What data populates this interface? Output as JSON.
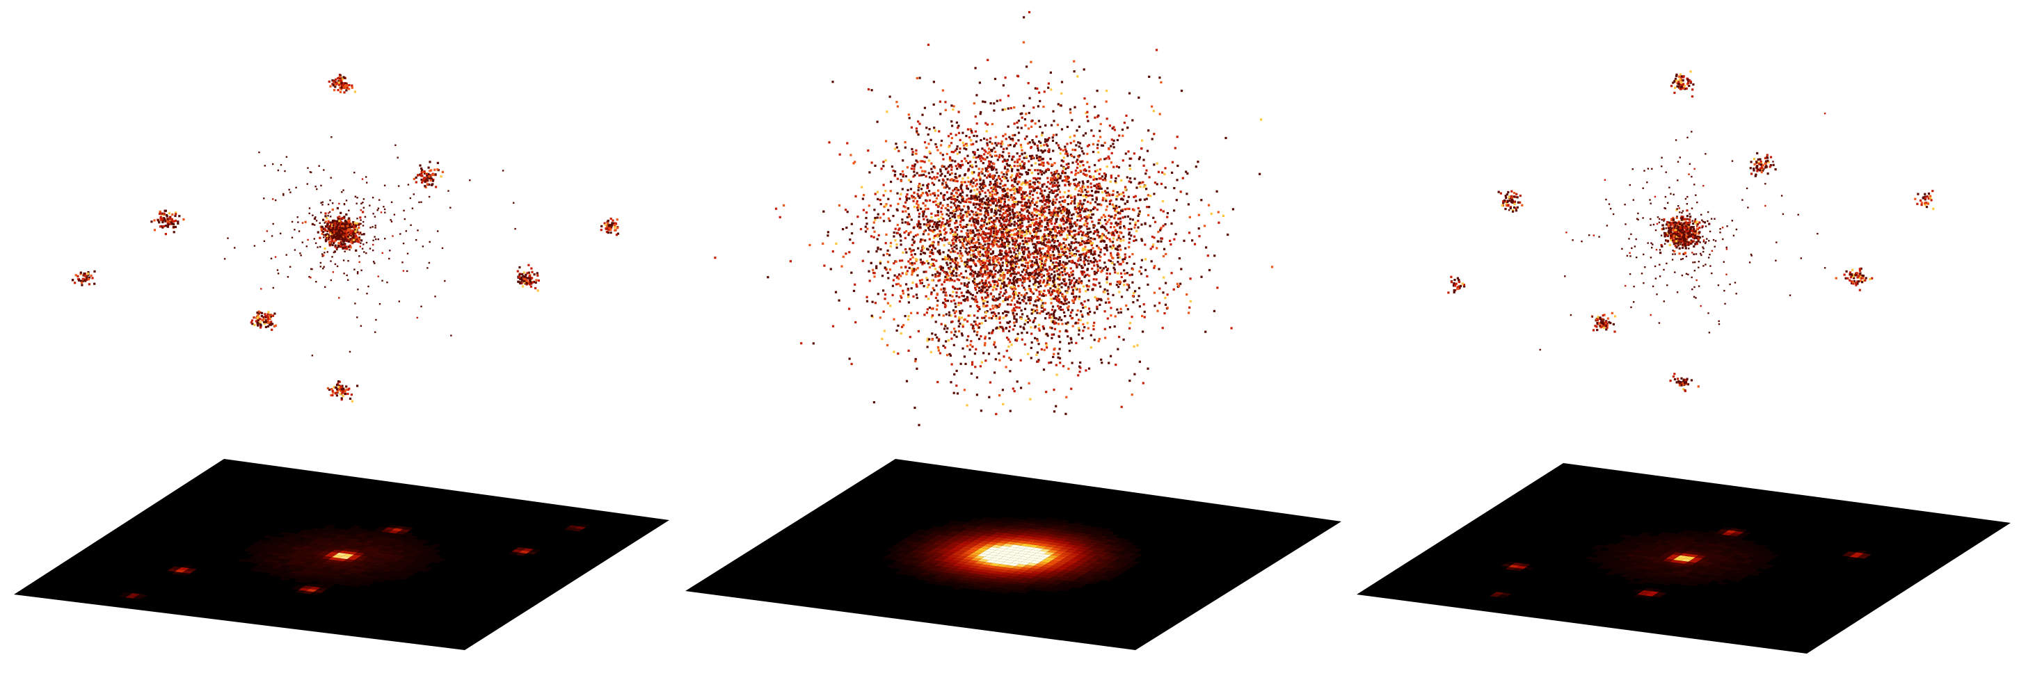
{
  "chart_data": [
    {
      "type": "scatter",
      "panel": "left",
      "description_of_content": "",
      "clusters": [
        {
          "x": 0,
          "y": 0,
          "n": 500,
          "spread": 0.05
        },
        {
          "x": 0,
          "y": 1,
          "n": 80,
          "spread": 0.03
        },
        {
          "x": 0.48,
          "y": 0.38,
          "n": 80,
          "spread": 0.03
        },
        {
          "x": -0.98,
          "y": 0.08,
          "n": 80,
          "spread": 0.03
        },
        {
          "x": 1.52,
          "y": 0.04,
          "n": 50,
          "spread": 0.025
        },
        {
          "x": -1.45,
          "y": -0.3,
          "n": 40,
          "spread": 0.025
        },
        {
          "x": -0.42,
          "y": -0.58,
          "n": 80,
          "spread": 0.03
        },
        {
          "x": 1.05,
          "y": -0.3,
          "n": 80,
          "spread": 0.03
        },
        {
          "x": 0,
          "y": -1.05,
          "n": 60,
          "spread": 0.03
        }
      ],
      "halo": {
        "n": 320,
        "spread": 0.34
      },
      "heatmap_peaks": [
        {
          "x": 0,
          "y": 0,
          "amp": 1.0,
          "sigma": 0.05
        },
        {
          "x": -1.0,
          "y": 0.08,
          "amp": 0.55,
          "sigma": 0.035
        },
        {
          "x": 0.48,
          "y": 0.38,
          "amp": 0.45,
          "sigma": 0.035
        },
        {
          "x": -0.42,
          "y": -0.58,
          "amp": 0.55,
          "sigma": 0.035
        },
        {
          "x": 1.05,
          "y": -0.3,
          "amp": 0.5,
          "sigma": 0.035
        },
        {
          "x": 1.52,
          "y": 0.04,
          "amp": 0.3,
          "sigma": 0.03
        },
        {
          "x": -1.45,
          "y": -0.3,
          "amp": 0.3,
          "sigma": 0.03
        },
        {
          "x": 0,
          "y": 0,
          "amp": 0.12,
          "sigma": 0.35
        }
      ]
    },
    {
      "type": "scatter",
      "panel": "middle",
      "clusters": [
        {
          "x": 0,
          "y": 0,
          "n": 5200,
          "spread": 0.38
        }
      ],
      "halo": {
        "n": 0,
        "spread": 0
      },
      "heatmap_peaks": [
        {
          "x": 0,
          "y": 0,
          "amp": 1.0,
          "sigma": 0.14
        },
        {
          "x": 0,
          "y": 0,
          "amp": 0.75,
          "sigma": 0.3
        }
      ]
    },
    {
      "type": "scatter",
      "panel": "right",
      "clusters": [
        {
          "x": 0,
          "y": 0,
          "n": 450,
          "spread": 0.05
        },
        {
          "x": 0,
          "y": 1,
          "n": 60,
          "spread": 0.03
        },
        {
          "x": 0.45,
          "y": 0.45,
          "n": 60,
          "spread": 0.03
        },
        {
          "x": -0.98,
          "y": 0.22,
          "n": 60,
          "spread": 0.03
        },
        {
          "x": 1.4,
          "y": 0.22,
          "n": 30,
          "spread": 0.025
        },
        {
          "x": -1.3,
          "y": -0.35,
          "n": 30,
          "spread": 0.025
        },
        {
          "x": -0.45,
          "y": -0.6,
          "n": 60,
          "spread": 0.03
        },
        {
          "x": 1.0,
          "y": -0.3,
          "n": 60,
          "spread": 0.03
        },
        {
          "x": 0,
          "y": -1.0,
          "n": 40,
          "spread": 0.025
        }
      ],
      "halo": {
        "n": 300,
        "spread": 0.36
      },
      "heatmap_peaks": [
        {
          "x": 0,
          "y": 0,
          "amp": 1.0,
          "sigma": 0.05
        },
        {
          "x": -1.0,
          "y": 0.2,
          "amp": 0.5,
          "sigma": 0.035
        },
        {
          "x": 0.45,
          "y": 0.4,
          "amp": 0.45,
          "sigma": 0.035
        },
        {
          "x": -0.45,
          "y": -0.6,
          "amp": 0.5,
          "sigma": 0.035
        },
        {
          "x": 1.0,
          "y": -0.3,
          "amp": 0.5,
          "sigma": 0.035
        },
        {
          "x": -1.3,
          "y": -0.3,
          "amp": 0.25,
          "sigma": 0.03
        },
        {
          "x": 0,
          "y": 0,
          "amp": 0.1,
          "sigma": 0.35
        }
      ]
    }
  ],
  "colors": {
    "background": "#ffffff",
    "plane": "#000000",
    "point_dark": "#3a0000",
    "point_mid": "#d8240a",
    "point_bright": "#ffd34a"
  }
}
